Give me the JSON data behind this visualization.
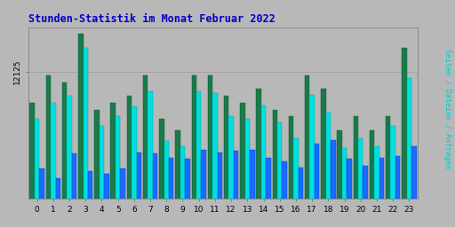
{
  "title": "Stunden-Statistik im Monat Februar 2022",
  "title_color": "#0000cc",
  "background_color": "#b8b8b8",
  "plot_bg_color": "#b8b8b8",
  "ylabel": "Seiten / Dateien / Anfragen",
  "ylabel_color": "#00cccc",
  "hours": [
    0,
    1,
    2,
    3,
    4,
    5,
    6,
    7,
    8,
    9,
    10,
    11,
    12,
    13,
    14,
    15,
    16,
    17,
    18,
    19,
    20,
    21,
    22,
    23
  ],
  "green_bars": [
    11900,
    12100,
    12050,
    12400,
    11850,
    11900,
    11950,
    12100,
    11780,
    11700,
    12100,
    12100,
    11950,
    11900,
    12000,
    11850,
    11800,
    12100,
    12000,
    11700,
    11800,
    11700,
    11800,
    12300
  ],
  "cyan_bars": [
    11780,
    11900,
    11950,
    12300,
    11730,
    11800,
    11870,
    11980,
    11620,
    11580,
    11980,
    11970,
    11800,
    11780,
    11880,
    11760,
    11640,
    11960,
    11830,
    11570,
    11640,
    11580,
    11730,
    12080
  ],
  "blue_bars": [
    11420,
    11350,
    11530,
    11400,
    11380,
    11420,
    11540,
    11530,
    11500,
    11490,
    11560,
    11540,
    11550,
    11560,
    11500,
    11470,
    11430,
    11600,
    11630,
    11490,
    11440,
    11500,
    11510,
    11580
  ],
  "ymin": 11200,
  "ymax": 12450,
  "bar_width": 0.3,
  "title_fontsize": 8.5,
  "tick_fontsize": 6.5
}
